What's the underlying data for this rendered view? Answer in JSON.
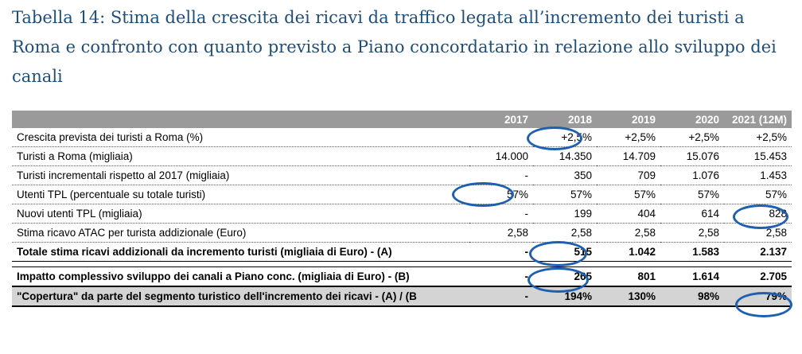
{
  "caption": "Tabella 14: Stima della crescita dei ricavi da traffico legata all’incremento dei turisti a Roma e confronto con quanto previsto a Piano concordatario in relazione allo sviluppo dei canali",
  "table": {
    "headers": [
      "",
      "2017",
      "2018",
      "2019",
      "2020",
      "2021 (12M)"
    ],
    "rows": [
      {
        "label": "Crescita prevista dei turisti a Roma (%)",
        "values": [
          "",
          "+2,5%",
          "+2,5%",
          "+2,5%",
          "+2,5%"
        ]
      },
      {
        "label": "Turisti a Roma (migliaia)",
        "values": [
          "14.000",
          "14.350",
          "14.709",
          "15.076",
          "15.453"
        ]
      },
      {
        "label": "Turisti incrementali rispetto al 2017 (migliaia)",
        "values": [
          "-",
          "350",
          "709",
          "1.076",
          "1.453"
        ]
      },
      {
        "label": "Utenti TPL (percentuale su totale turisti)",
        "values": [
          "57%",
          "57%",
          "57%",
          "57%",
          "57%"
        ]
      },
      {
        "label": "Nuovi utenti TPL (migliaia)",
        "values": [
          "-",
          "199",
          "404",
          "614",
          "828"
        ]
      },
      {
        "label": "Stima ricavo ATAC per turista addizionale (Euro)",
        "values": [
          "2,58",
          "2,58",
          "2,58",
          "2,58",
          "2,58"
        ]
      },
      {
        "label": "Totale stima ricavi addizionali da incremento turisti (migliaia di Euro) - (A)",
        "values": [
          "-",
          "515",
          "1.042",
          "1.583",
          "2.137"
        ]
      },
      {
        "label": "Impatto complessivo sviluppo dei canali a Piano conc. (migliaia di Euro) - (B)",
        "values": [
          "-",
          "265",
          "801",
          "1.614",
          "2.705"
        ]
      },
      {
        "label": "\"Copertura\" da parte del segmento turistico dell'incremento dei ricavi - (A) / (B",
        "values": [
          "-",
          "194%",
          "130%",
          "98%",
          "79%"
        ]
      }
    ]
  },
  "highlight_color": "#1f5fb0"
}
